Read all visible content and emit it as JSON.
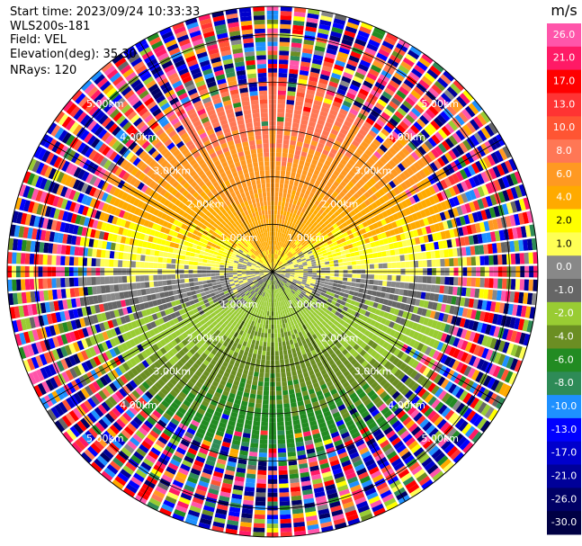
{
  "header": {
    "start_time": "Start time: 2023/09/24 10:33:33",
    "site": "WLS200s-181",
    "field": "Field: VEL",
    "elevation": "Elevation(deg): 35.30",
    "nrays": "NRays: 120"
  },
  "chart_data": {
    "type": "heatmap",
    "projection": "polar-ppi",
    "field": "VEL",
    "nrays": 120,
    "elevation_deg": 35.3,
    "range_rings_km": [
      1.0,
      2.0,
      3.0,
      4.0,
      5.0
    ],
    "ring_labels": [
      "1.00km",
      "2.00km",
      "3.00km",
      "4.00km",
      "5.00km"
    ],
    "max_range_km": 5.6,
    "colorbar": {
      "unit": "m/s",
      "ticks": [
        26.0,
        21.0,
        17.0,
        13.0,
        10.0,
        8.0,
        6.0,
        4.0,
        2.0,
        1.0,
        0.0,
        -1.0,
        -2.0,
        -4.0,
        -6.0,
        -8.0,
        -10.0,
        -13.0,
        -17.0,
        -21.0,
        -26.0,
        -30.0
      ],
      "tick_labels": [
        "26.0",
        "21.0",
        "17.0",
        "13.0",
        "10.0",
        "8.0",
        "6.0",
        "4.0",
        "2.0",
        "1.0",
        "0.0",
        "-1.0",
        "-2.0",
        "-4.0",
        "-6.0",
        "-8.0",
        "-10.0",
        "-13.0",
        "-17.0",
        "-21.0",
        "-26.0",
        "-30.0"
      ],
      "colors": [
        "#ff55aa",
        "#ff1a66",
        "#ff0000",
        "#ff3333",
        "#ff5533",
        "#ff7755",
        "#ff9922",
        "#ffaa00",
        "#ffff00",
        "#ffff55",
        "#888888",
        "#666666",
        "#99cc33",
        "#6b8e23",
        "#228b22",
        "#2e8b57",
        "#1e90ff",
        "#0000ff",
        "#0000cc",
        "#000099",
        "#000066",
        "#000044"
      ]
    },
    "pattern": {
      "north_sector": "positive velocities 2–8 m/s (yellow/orange)",
      "south_sector": "negative velocities -2 to -8 m/s (green)",
      "outer_ranges": "noisy / random colors beyond ~4 km"
    }
  }
}
